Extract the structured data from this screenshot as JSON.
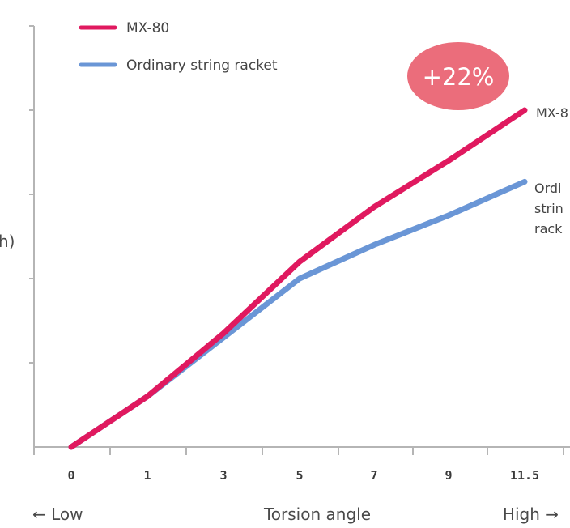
{
  "chart_data": {
    "type": "line",
    "categories": [
      "0",
      "1",
      "3",
      "5",
      "7",
      "9",
      "11.5"
    ],
    "tick_labels": [
      "0",
      "1",
      "3",
      "5",
      "7",
      "9",
      "11.5"
    ],
    "xlabel": "Torsion angle",
    "x_low_label": "← Low",
    "x_high_label": "High →",
    "ylabel_fragment": "h)",
    "ylim": [
      0,
      5
    ],
    "yticks": [
      0,
      1,
      2,
      3,
      4,
      5
    ],
    "grid": false,
    "legend_position": "top-left",
    "series": [
      {
        "name": "MX-80",
        "color": "#e0195f",
        "values": [
          0,
          0.6,
          1.35,
          2.2,
          2.85,
          3.4,
          4.0
        ],
        "end_label": [
          "MX-8"
        ]
      },
      {
        "name": "Ordinary string racket",
        "color": "#6a96d6",
        "values": [
          0,
          0.6,
          1.3,
          2.0,
          2.4,
          2.75,
          3.15
        ],
        "end_label": [
          "Ordi",
          "strin",
          "rack"
        ]
      }
    ],
    "annotation": {
      "text": "+22%",
      "color": "#eb6d7b"
    }
  }
}
